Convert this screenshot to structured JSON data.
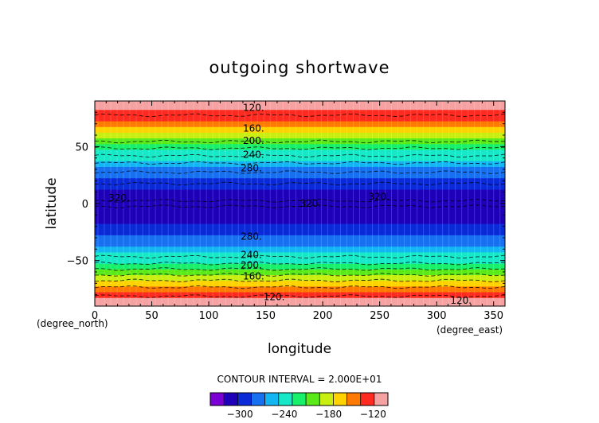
{
  "chart_data": {
    "type": "heatmap",
    "title": "outgoing shortwave",
    "xlabel": "longitude",
    "ylabel": "latitude",
    "x_unit": "(degree_east)",
    "y_unit": "(degree_north)",
    "xlim": [
      0,
      360
    ],
    "ylim": [
      -90,
      90
    ],
    "x_ticks": [
      0,
      50,
      100,
      150,
      200,
      250,
      300,
      350
    ],
    "y_ticks": [
      -50,
      0,
      50
    ],
    "contour_interval_text": "CONTOUR INTERVAL = 2.000E+01",
    "levels": [
      -340,
      -320,
      -300,
      -280,
      -260,
      -240,
      -220,
      -200,
      -180,
      -160,
      -140,
      -120,
      -100
    ],
    "colors": [
      "#7a00d6",
      "#1d00b8",
      "#0a2ad8",
      "#1770f0",
      "#13b6f2",
      "#17e8c8",
      "#18f06c",
      "#5aea1a",
      "#c8ee12",
      "#ffd200",
      "#ff7a00",
      "#ff2a20",
      "#f6a2a2"
    ],
    "colorbar_tick_values": [
      -300,
      -240,
      -180,
      -120
    ],
    "colorbar_tick_labels": [
      "−300",
      "−240",
      "−180",
      "−120"
    ],
    "latitude_profile": [
      {
        "lat": -90,
        "value": -100
      },
      {
        "lat": -85,
        "value": -105
      },
      {
        "lat": -80,
        "value": -125
      },
      {
        "lat": -75,
        "value": -135
      },
      {
        "lat": -70,
        "value": -150
      },
      {
        "lat": -65,
        "value": -170
      },
      {
        "lat": -60,
        "value": -190
      },
      {
        "lat": -55,
        "value": -210
      },
      {
        "lat": -50,
        "value": -230
      },
      {
        "lat": -45,
        "value": -245
      },
      {
        "lat": -40,
        "value": -260
      },
      {
        "lat": -35,
        "value": -270
      },
      {
        "lat": -30,
        "value": -280
      },
      {
        "lat": -25,
        "value": -290
      },
      {
        "lat": -20,
        "value": -300
      },
      {
        "lat": -15,
        "value": -310
      },
      {
        "lat": -10,
        "value": -315
      },
      {
        "lat": -5,
        "value": -318
      },
      {
        "lat": 0,
        "value": -322
      },
      {
        "lat": 5,
        "value": -318
      },
      {
        "lat": 10,
        "value": -312
      },
      {
        "lat": 15,
        "value": -305
      },
      {
        "lat": 20,
        "value": -295
      },
      {
        "lat": 25,
        "value": -285
      },
      {
        "lat": 30,
        "value": -275
      },
      {
        "lat": 35,
        "value": -262
      },
      {
        "lat": 40,
        "value": -245
      },
      {
        "lat": 45,
        "value": -232
      },
      {
        "lat": 50,
        "value": -215
      },
      {
        "lat": 55,
        "value": -198
      },
      {
        "lat": 60,
        "value": -180
      },
      {
        "lat": 65,
        "value": -160
      },
      {
        "lat": 70,
        "value": -140
      },
      {
        "lat": 75,
        "value": -128
      },
      {
        "lat": 80,
        "value": -112
      },
      {
        "lat": 85,
        "value": -105
      },
      {
        "lat": 90,
        "value": -100
      }
    ],
    "contour_labels": [
      {
        "text": "120.",
        "lon": 130,
        "lat": 84
      },
      {
        "text": "160.",
        "lon": 130,
        "lat": 66
      },
      {
        "text": "200.",
        "lon": 130,
        "lat": 55
      },
      {
        "text": "240.",
        "lon": 130,
        "lat": 43
      },
      {
        "text": "280.",
        "lon": 128,
        "lat": 31
      },
      {
        "text": "320.",
        "lon": 12,
        "lat": 5
      },
      {
        "text": "320.",
        "lon": 180,
        "lat": 0
      },
      {
        "text": "320.",
        "lon": 240,
        "lat": 6
      },
      {
        "text": "280.",
        "lon": 128,
        "lat": -29
      },
      {
        "text": "240.",
        "lon": 128,
        "lat": -45
      },
      {
        "text": "200.",
        "lon": 128,
        "lat": -54
      },
      {
        "text": "160.",
        "lon": 130,
        "lat": -64
      },
      {
        "text": "120.",
        "lon": 148,
        "lat": -82
      },
      {
        "text": "120.",
        "lon": 312,
        "lat": -85
      }
    ]
  }
}
